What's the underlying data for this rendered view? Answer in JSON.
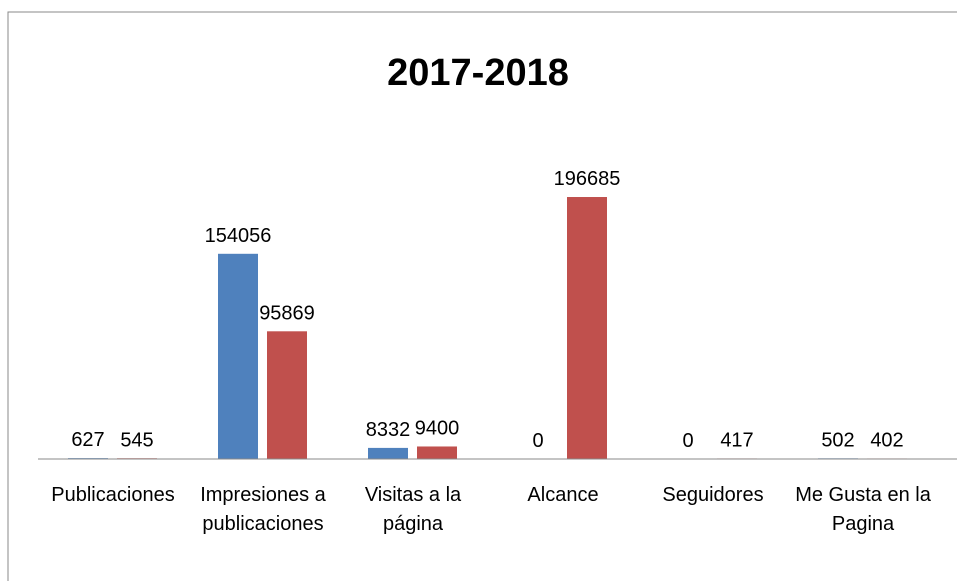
{
  "chart_data": {
    "type": "bar",
    "title": "2017-2018",
    "categories": [
      "Publicaciones",
      "Impresiones a publicaciones",
      "Visitas a la página",
      "Alcance",
      "Seguidores",
      "Me Gusta en la Pagina"
    ],
    "series": [
      {
        "color": "#4f81bd",
        "values": [
          627,
          154056,
          8332,
          0,
          0,
          502
        ]
      },
      {
        "color": "#c0504d",
        "values": [
          545,
          95869,
          9400,
          196685,
          417,
          402
        ]
      }
    ],
    "ylim": [
      0,
      250000
    ]
  }
}
